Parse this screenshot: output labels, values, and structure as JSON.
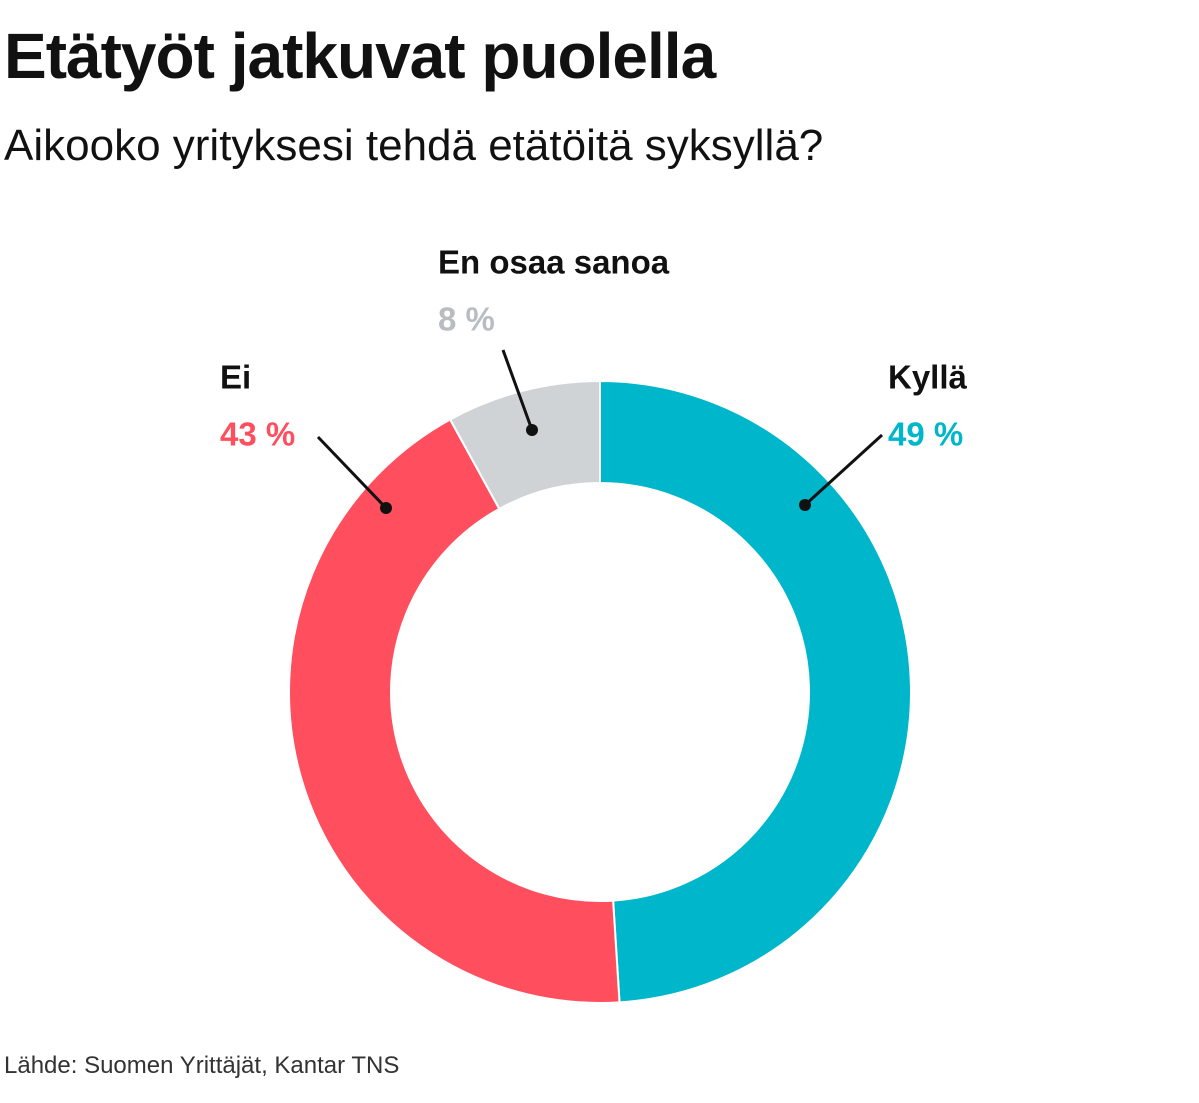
{
  "header": {
    "title": "Etätyöt jatkuvat puolella",
    "subtitle": "Aikooko yrityksesi tehdä etätöitä syksyllä?"
  },
  "chart_data": {
    "type": "pie",
    "variant": "donut",
    "unit": "%",
    "slices": [
      {
        "label": "Kyllä",
        "value": 49,
        "value_label": "49 %",
        "color": "#00b6cb"
      },
      {
        "label": "Ei",
        "value": 43,
        "value_label": "43 %",
        "color": "#ff4f5e"
      },
      {
        "label": "En osaa sanoa",
        "value": 8,
        "value_label": "8 %",
        "color": "#d0d3d6"
      }
    ]
  },
  "footer": {
    "source": "Lähde: Suomen Yrittäjät, Kantar TNS"
  }
}
